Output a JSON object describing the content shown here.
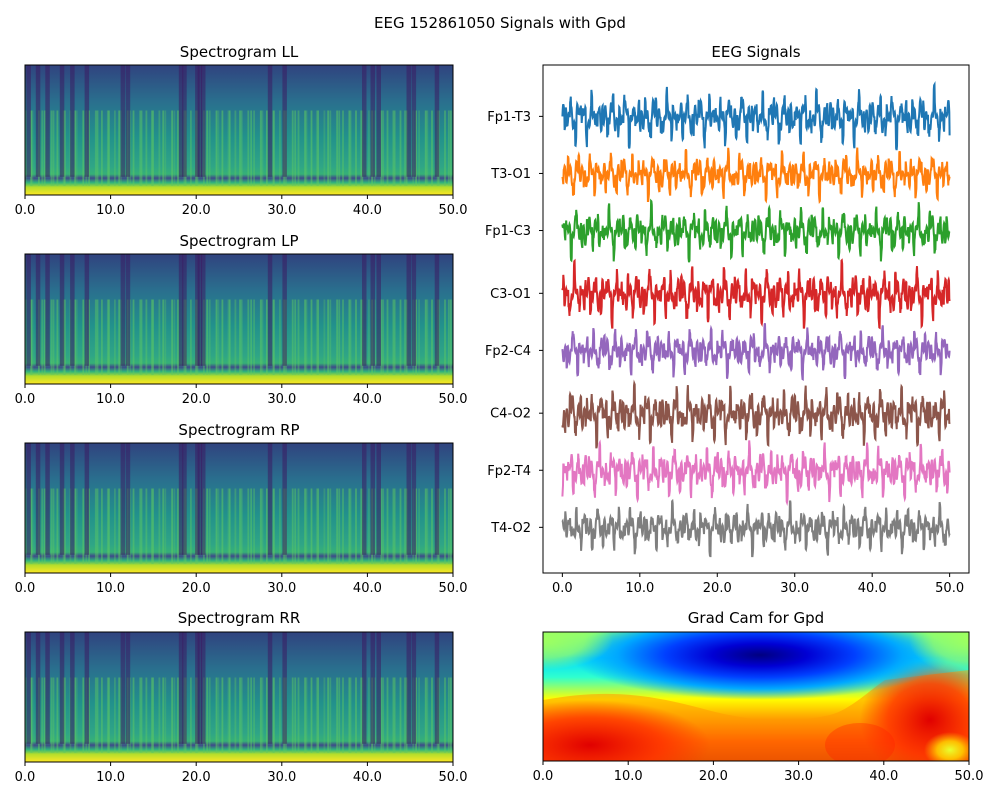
{
  "figure": {
    "suptitle": "EEG 152861050 Signals with Gpd"
  },
  "chart_data": [
    {
      "type": "heatmap",
      "title": "Spectrogram LL",
      "xlim": [
        0,
        50
      ],
      "xticks": [
        "0.0",
        "10.0",
        "20.0",
        "30.0",
        "40.0",
        "50.0"
      ],
      "colormap": "viridis",
      "dark_columns_x": [
        0.4,
        1.5,
        2.6,
        4.3,
        5.5,
        7.2,
        11.4,
        12.0,
        18.2,
        18.6,
        20.1,
        20.4,
        20.8,
        28.6,
        30.3,
        39.6,
        40.6,
        41.3,
        44.8,
        45.4,
        48.1
      ]
    },
    {
      "type": "heatmap",
      "title": "Spectrogram LP",
      "xlim": [
        0,
        50
      ],
      "xticks": [
        "0.0",
        "10.0",
        "20.0",
        "30.0",
        "40.0",
        "50.0"
      ],
      "colormap": "viridis",
      "dark_columns_x": [
        0.4,
        1.5,
        2.6,
        4.3,
        5.5,
        7.2,
        11.4,
        12.0,
        18.2,
        18.6,
        20.1,
        20.4,
        20.8,
        28.6,
        30.3,
        39.6,
        40.6,
        41.3,
        44.8,
        45.4,
        48.1
      ]
    },
    {
      "type": "heatmap",
      "title": "Spectrogram RP",
      "xlim": [
        0,
        50
      ],
      "xticks": [
        "0.0",
        "10.0",
        "20.0",
        "30.0",
        "40.0",
        "50.0"
      ],
      "colormap": "viridis",
      "dark_columns_x": [
        0.4,
        1.5,
        2.6,
        4.3,
        5.5,
        7.2,
        11.4,
        12.0,
        18.2,
        18.6,
        20.1,
        20.4,
        20.8,
        28.6,
        30.3,
        39.6,
        40.6,
        41.3,
        44.8,
        45.4,
        48.1
      ]
    },
    {
      "type": "heatmap",
      "title": "Spectrogram RR",
      "xlim": [
        0,
        50
      ],
      "xticks": [
        "0.0",
        "10.0",
        "20.0",
        "30.0",
        "40.0",
        "50.0"
      ],
      "colormap": "viridis",
      "dark_columns_x": [
        0.4,
        1.5,
        2.6,
        4.3,
        5.5,
        7.2,
        11.4,
        12.0,
        18.2,
        18.6,
        20.1,
        20.4,
        20.8,
        28.6,
        30.3,
        39.6,
        40.6,
        41.3,
        44.8,
        45.4,
        48.1
      ]
    },
    {
      "type": "line",
      "title": "EEG Signals",
      "xlim": [
        -2.5,
        52.5
      ],
      "xticks": [
        "0.0",
        "10.0",
        "20.0",
        "30.0",
        "40.0",
        "50.0"
      ],
      "x_range": [
        0,
        50
      ],
      "series": [
        {
          "name": "Fp1-T3",
          "color": "#1f77b4",
          "level": 7,
          "amplitude": 0.48
        },
        {
          "name": "T3-O1",
          "color": "#ff7f0e",
          "level": 6,
          "amplitude": 0.42
        },
        {
          "name": "Fp1-C3",
          "color": "#2ca02c",
          "level": 5,
          "amplitude": 0.45
        },
        {
          "name": "C3-O1",
          "color": "#d62728",
          "level": 3.9,
          "amplitude": 0.5
        },
        {
          "name": "Fp2-C4",
          "color": "#9467bd",
          "level": 2.9,
          "amplitude": 0.42
        },
        {
          "name": "C4-O2",
          "color": "#8c564b",
          "level": 1.8,
          "amplitude": 0.5
        },
        {
          "name": "Fp2-T4",
          "color": "#e377c2",
          "level": 0.8,
          "amplitude": 0.47
        },
        {
          "name": "T4-O2",
          "color": "#7f7f7f",
          "level": -0.2,
          "amplitude": 0.42
        }
      ]
    },
    {
      "type": "heatmap",
      "title": "Grad Cam for Gpd",
      "xlim": [
        0,
        50
      ],
      "xticks": [
        "0.0",
        "10.0",
        "20.0",
        "30.0",
        "40.0",
        "50.0"
      ],
      "colormap": "jet"
    }
  ]
}
